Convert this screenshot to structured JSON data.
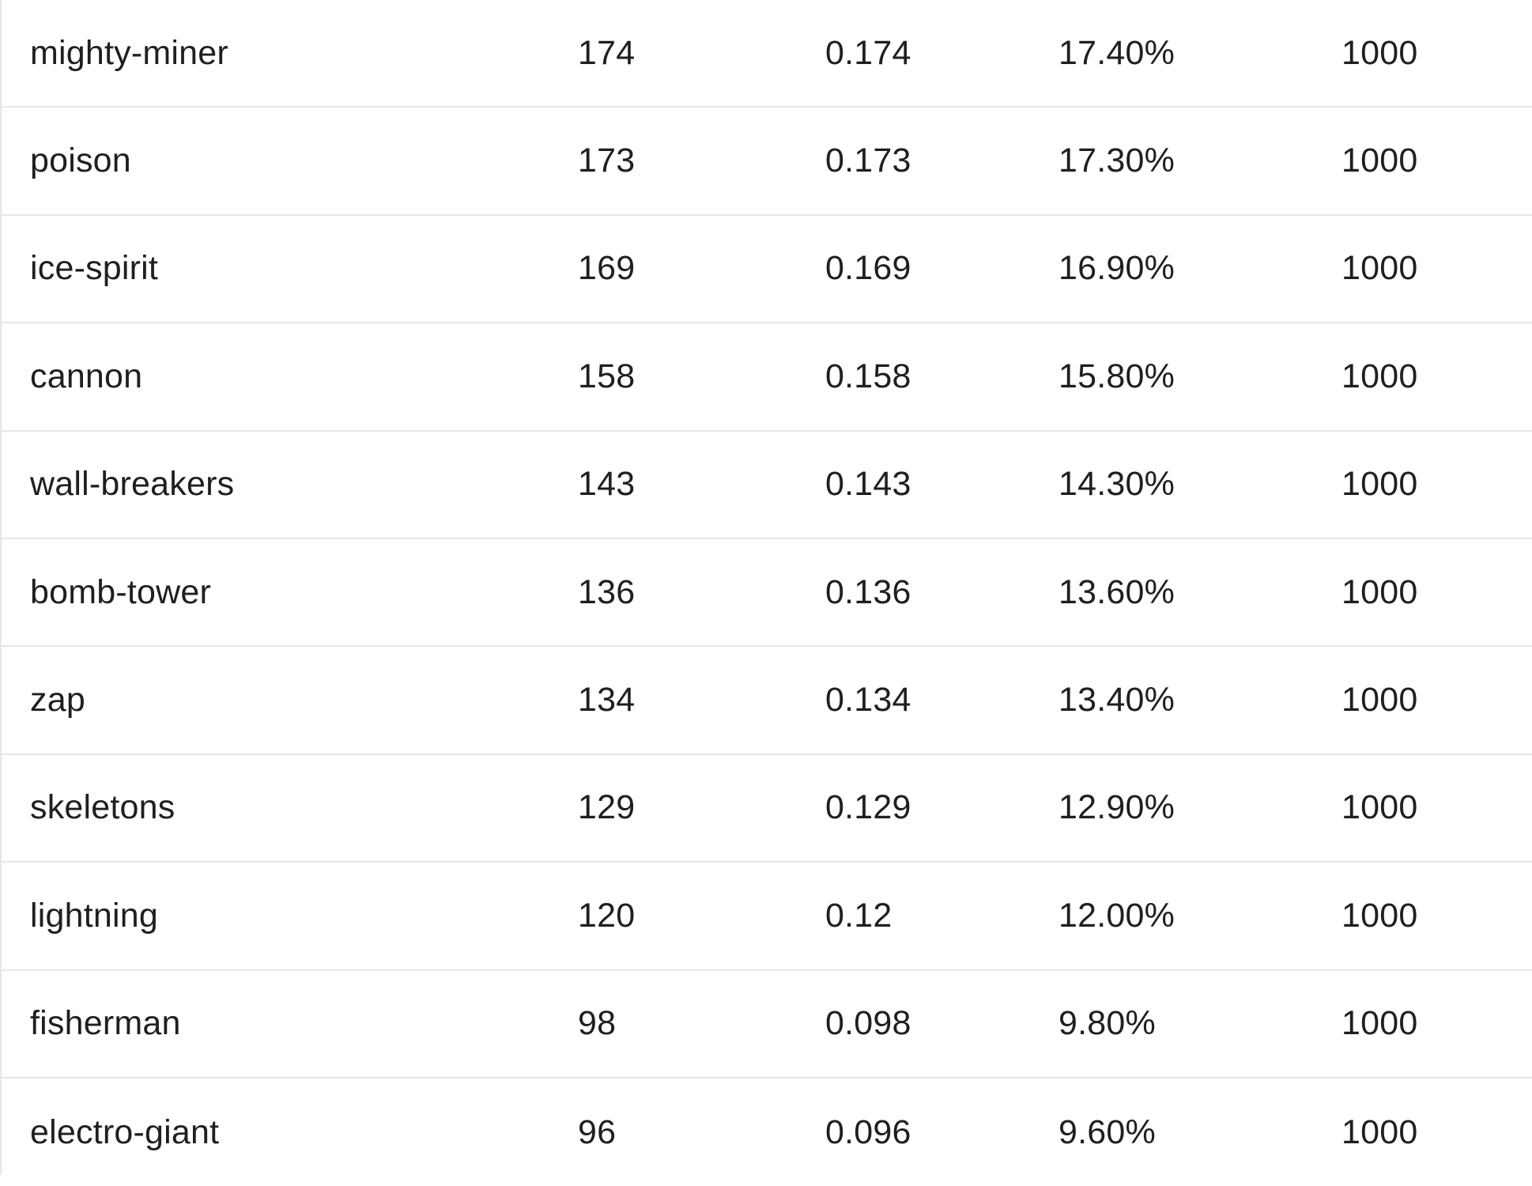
{
  "table": {
    "rows": [
      {
        "name": "mighty-miner",
        "count": "174",
        "ratio": "0.174",
        "percent": "17.40%",
        "total": "1000"
      },
      {
        "name": "poison",
        "count": "173",
        "ratio": "0.173",
        "percent": "17.30%",
        "total": "1000"
      },
      {
        "name": "ice-spirit",
        "count": "169",
        "ratio": "0.169",
        "percent": "16.90%",
        "total": "1000"
      },
      {
        "name": "cannon",
        "count": "158",
        "ratio": "0.158",
        "percent": "15.80%",
        "total": "1000"
      },
      {
        "name": "wall-breakers",
        "count": "143",
        "ratio": "0.143",
        "percent": "14.30%",
        "total": "1000"
      },
      {
        "name": "bomb-tower",
        "count": "136",
        "ratio": "0.136",
        "percent": "13.60%",
        "total": "1000"
      },
      {
        "name": "zap",
        "count": "134",
        "ratio": "0.134",
        "percent": "13.40%",
        "total": "1000"
      },
      {
        "name": "skeletons",
        "count": "129",
        "ratio": "0.129",
        "percent": "12.90%",
        "total": "1000"
      },
      {
        "name": "lightning",
        "count": "120",
        "ratio": "0.12",
        "percent": "12.00%",
        "total": "1000"
      },
      {
        "name": "fisherman",
        "count": "98",
        "ratio": "0.098",
        "percent": "9.80%",
        "total": "1000"
      },
      {
        "name": "electro-giant",
        "count": "96",
        "ratio": "0.096",
        "percent": "9.60%",
        "total": "1000"
      }
    ]
  }
}
